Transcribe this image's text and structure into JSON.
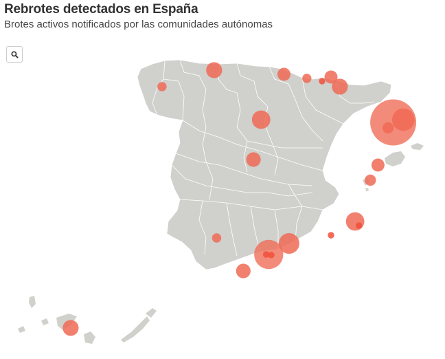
{
  "header": {
    "title": "Rebrotes detectados en España",
    "subtitle": "Brotes activos notificados por las comunidades autónomas"
  },
  "controls": {
    "zoom_icon": "search-icon"
  },
  "colors": {
    "land": "#d0d0cc",
    "border": "#ffffff",
    "outbreak": "#f06a55",
    "outbreak_inner": "#f0503c"
  },
  "outbreaks": [
    {
      "lon": -6.55,
      "lat": 43.5,
      "size": 3
    },
    {
      "lon": -8.6,
      "lat": 42.9,
      "size": 1
    },
    {
      "lon": -3.8,
      "lat": 43.35,
      "size": 2
    },
    {
      "lon": -2.9,
      "lat": 43.2,
      "size": 1
    },
    {
      "lon": -2.3,
      "lat": 43.1,
      "size": 0.5
    },
    {
      "lon": -1.95,
      "lat": 43.25,
      "size": 2
    },
    {
      "lon": -1.6,
      "lat": 42.9,
      "size": 3
    },
    {
      "lon": -4.7,
      "lat": 41.7,
      "size": 4
    },
    {
      "lon": 0.5,
      "lat": 41.6,
      "size": 25
    },
    {
      "lon": 0.9,
      "lat": 41.7,
      "size": 6
    },
    {
      "lon": 0.3,
      "lat": 41.4,
      "size": 1.5
    },
    {
      "lon": -5.0,
      "lat": 40.25,
      "size": 2.5
    },
    {
      "lon": -0.1,
      "lat": 40.05,
      "size": 2
    },
    {
      "lon": -0.4,
      "lat": 39.5,
      "size": 1.5
    },
    {
      "lon": -1.0,
      "lat": 38.0,
      "size": 4
    },
    {
      "lon": -0.85,
      "lat": 37.85,
      "size": 0.5
    },
    {
      "lon": -1.95,
      "lat": 37.5,
      "size": 0.5
    },
    {
      "lon": -6.45,
      "lat": 37.4,
      "size": 1
    },
    {
      "lon": -3.6,
      "lat": 37.2,
      "size": 5
    },
    {
      "lon": -4.4,
      "lat": 36.8,
      "size": 10
    },
    {
      "lon": -4.5,
      "lat": 36.8,
      "size": 0.5
    },
    {
      "lon": -4.3,
      "lat": 36.78,
      "size": 0.5
    },
    {
      "lon": -5.4,
      "lat": 36.2,
      "size": 2.5
    },
    {
      "lon": -15.5,
      "lat": 28.0,
      "size": 3
    }
  ]
}
